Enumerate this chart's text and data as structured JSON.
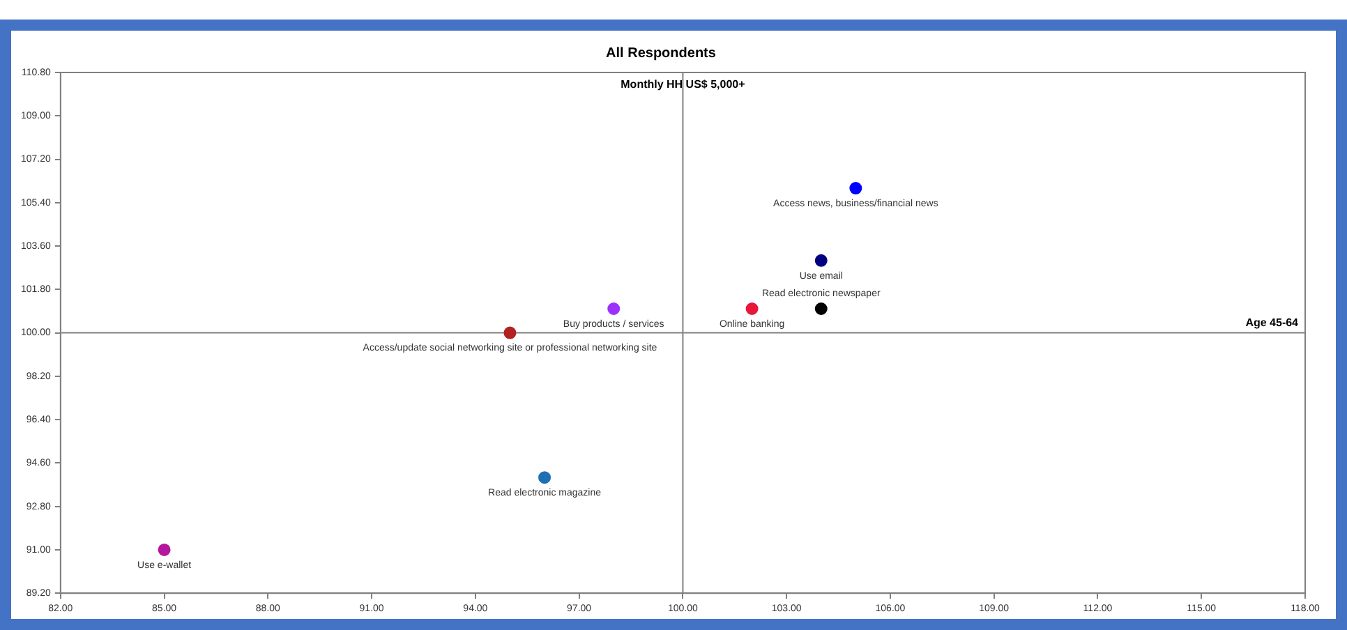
{
  "chart_data": {
    "type": "scatter",
    "title": "All Respondents",
    "xlim": [
      82,
      118
    ],
    "xticks": [
      {
        "value": 82,
        "label": "82.00"
      },
      {
        "value": 85,
        "label": "85.00"
      },
      {
        "value": 88,
        "label": "88.00"
      },
      {
        "value": 91,
        "label": "91.00"
      },
      {
        "value": 94,
        "label": "94.00"
      },
      {
        "value": 97,
        "label": "97.00"
      },
      {
        "value": 100,
        "label": "100.00"
      },
      {
        "value": 103,
        "label": "103.00"
      },
      {
        "value": 106,
        "label": "106.00"
      },
      {
        "value": 109,
        "label": "109.00"
      },
      {
        "value": 112,
        "label": "112.00"
      },
      {
        "value": 115,
        "label": "115.00"
      },
      {
        "value": 118,
        "label": "118.00"
      }
    ],
    "ylim": [
      89.2,
      110.8
    ],
    "yticks": [
      {
        "value": 89.2,
        "label": "89.20"
      },
      {
        "value": 91,
        "label": "91.00"
      },
      {
        "value": 92.8,
        "label": "92.80"
      },
      {
        "value": 94.6,
        "label": "94.60"
      },
      {
        "value": 96.4,
        "label": "96.40"
      },
      {
        "value": 98.2,
        "label": "98.20"
      },
      {
        "value": 100,
        "label": "100.00"
      },
      {
        "value": 101.8,
        "label": "101.80"
      },
      {
        "value": 103.6,
        "label": "103.60"
      },
      {
        "value": 105.4,
        "label": "105.40"
      },
      {
        "value": 107.2,
        "label": "107.20"
      },
      {
        "value": 109,
        "label": "109.00"
      },
      {
        "value": 110.8,
        "label": "110.80"
      }
    ],
    "grid": false,
    "legend": false,
    "marker": "circle",
    "ref_lines": [
      {
        "axis": "x",
        "value": 100,
        "label": "Monthly HH US$ 5,000+",
        "color": "#808080"
      },
      {
        "axis": "y",
        "value": 100,
        "label": "Age 45-64",
        "color": "#808080"
      }
    ],
    "series": [
      {
        "name": "Access news, business/financial news",
        "color": "#0000ff",
        "x": [
          105
        ],
        "values": [
          106
        ]
      },
      {
        "name": "Use email",
        "color": "#000080",
        "x": [
          104
        ],
        "values": [
          103
        ]
      },
      {
        "name": "Online banking",
        "color": "#e8173c",
        "x": [
          102
        ],
        "values": [
          101
        ]
      },
      {
        "name": "Read electronic newspaper",
        "color": "#000000",
        "x": [
          104
        ],
        "values": [
          101
        ]
      },
      {
        "name": "Buy products / services",
        "color": "#9b30ff",
        "x": [
          98
        ],
        "values": [
          101
        ]
      },
      {
        "name": "Access/update social networking site or professional networking site",
        "color": "#b22222",
        "x": [
          95
        ],
        "values": [
          100
        ]
      },
      {
        "name": "Read electronic magazine",
        "color": "#1f6fb5",
        "x": [
          96
        ],
        "values": [
          94
        ]
      },
      {
        "name": "Use e-wallet",
        "color": "#b5179e",
        "x": [
          85
        ],
        "values": [
          91
        ]
      }
    ]
  }
}
